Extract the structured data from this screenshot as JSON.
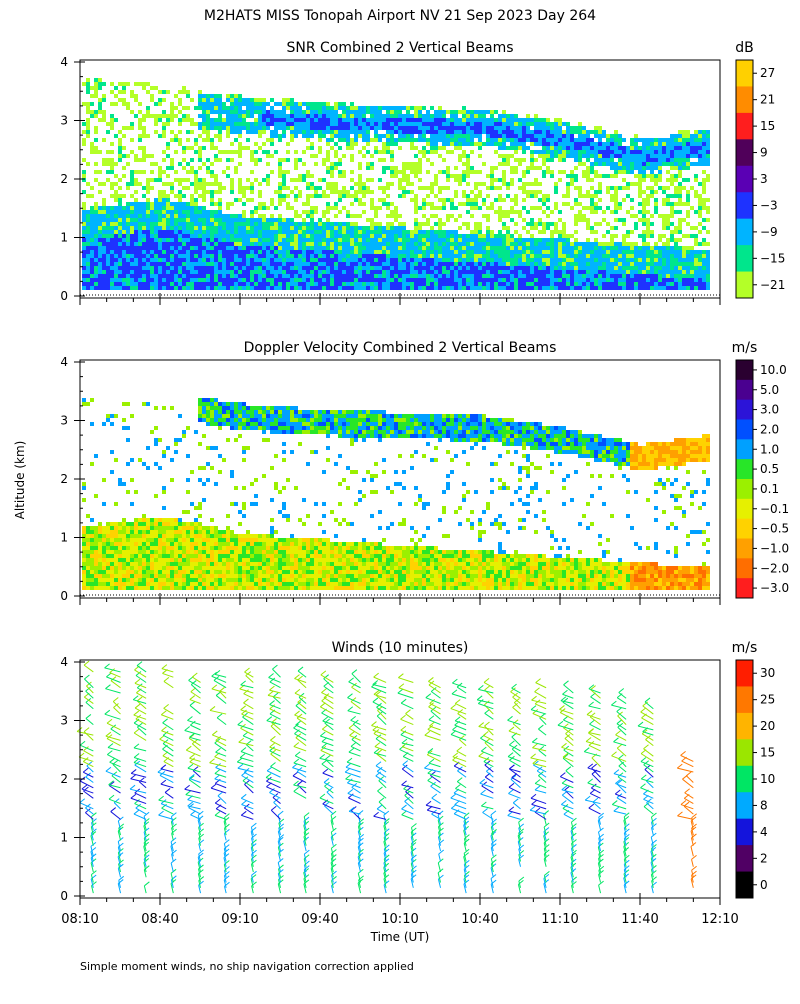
{
  "figure": {
    "title": "M2HATS MISS Tonopah Airport NV  21 Sep 2023 Day 264",
    "footnote": "Simple moment winds, no ship navigation correction applied",
    "xlabel": "Time (UT)",
    "ylabel": "Altitude (km)"
  },
  "chart_data": [
    {
      "type": "heatmap",
      "id": "snr",
      "title": "SNR Combined 2 Vertical Beams",
      "units": "dB",
      "colorbar_labels": [
        "27",
        "21",
        "15",
        "9",
        "3",
        "−3",
        "−9",
        "−15",
        "−21"
      ],
      "colorbar_colors": [
        "#ffd000",
        "#ff8c00",
        "#ff1e1e",
        "#50005a",
        "#5a00b4",
        "#1e32ff",
        "#00b4ff",
        "#00e68c",
        "#b4ff28"
      ],
      "x_ticks": [
        "08:10",
        "08:40",
        "09:10",
        "09:40",
        "10:10",
        "10:40",
        "11:10",
        "11:40",
        "12:10"
      ],
      "y_ticks": [
        "0",
        "1",
        "2",
        "3",
        "4"
      ],
      "xlim_hours": [
        8.1667,
        12.1667
      ],
      "ylim_km": [
        0,
        4
      ],
      "layers": [
        {
          "name": "near-surface strong return",
          "z_db": -6,
          "top_km": [
            1.0,
            1.2,
            0.9,
            0.8,
            0.7,
            0.6,
            0.5,
            0.4,
            0.3
          ]
        },
        {
          "name": "elevated layer",
          "z_db": -8,
          "alt_km": [
            3.4,
            3.3,
            3.1,
            3.0,
            2.95,
            2.9,
            2.7,
            2.4,
            2.6
          ]
        }
      ]
    },
    {
      "type": "heatmap",
      "id": "doppler",
      "title": "Doppler Velocity Combined 2 Vertical Beams",
      "units": "m/s",
      "colorbar_labels": [
        "10.0",
        "5.0",
        "3.0",
        "2.0",
        "1.0",
        "0.5",
        "0.1",
        "−0.1",
        "−0.5",
        "−1.0",
        "−2.0",
        "−3.0"
      ],
      "colorbar_colors": [
        "#2a0030",
        "#4a0090",
        "#2c14d8",
        "#0050ff",
        "#00a0ff",
        "#28e628",
        "#9bf000",
        "#e6f000",
        "#ffd200",
        "#ffa000",
        "#ff6e00",
        "#ff1e1e"
      ],
      "x_ticks": [
        "08:10",
        "08:40",
        "09:10",
        "09:40",
        "10:10",
        "10:40",
        "11:10",
        "11:40",
        "12:10"
      ],
      "y_ticks": [
        "0",
        "1",
        "2",
        "3",
        "4"
      ],
      "xlim_hours": [
        8.1667,
        12.1667
      ],
      "ylim_km": [
        0,
        4
      ]
    },
    {
      "type": "barbs",
      "id": "winds",
      "title": "Winds (10 minutes)",
      "units": "m/s",
      "colorbar_labels": [
        "30",
        "25",
        "20",
        "15",
        "10",
        "8",
        "4",
        "2",
        "0"
      ],
      "colorbar_colors": [
        "#ff1e00",
        "#ff7800",
        "#ffb400",
        "#9be600",
        "#00e664",
        "#00aaff",
        "#1414dc",
        "#500064",
        "#000000"
      ],
      "x_ticks": [
        "08:10",
        "08:40",
        "09:10",
        "09:40",
        "10:10",
        "10:40",
        "11:10",
        "11:40",
        "12:10"
      ],
      "y_ticks": [
        "0",
        "1",
        "2",
        "3",
        "4"
      ],
      "xlim_hours": [
        8.1667,
        12.1667
      ],
      "ylim_km": [
        0,
        4
      ],
      "profiles_time_h": [
        8.25,
        8.42,
        8.58,
        8.75,
        8.92,
        9.08,
        9.25,
        9.42,
        9.58,
        9.75,
        9.92,
        10.08,
        10.25,
        10.42,
        10.58,
        10.75,
        10.92,
        11.08,
        11.25,
        11.42,
        11.58,
        11.75,
        12.0
      ]
    }
  ]
}
